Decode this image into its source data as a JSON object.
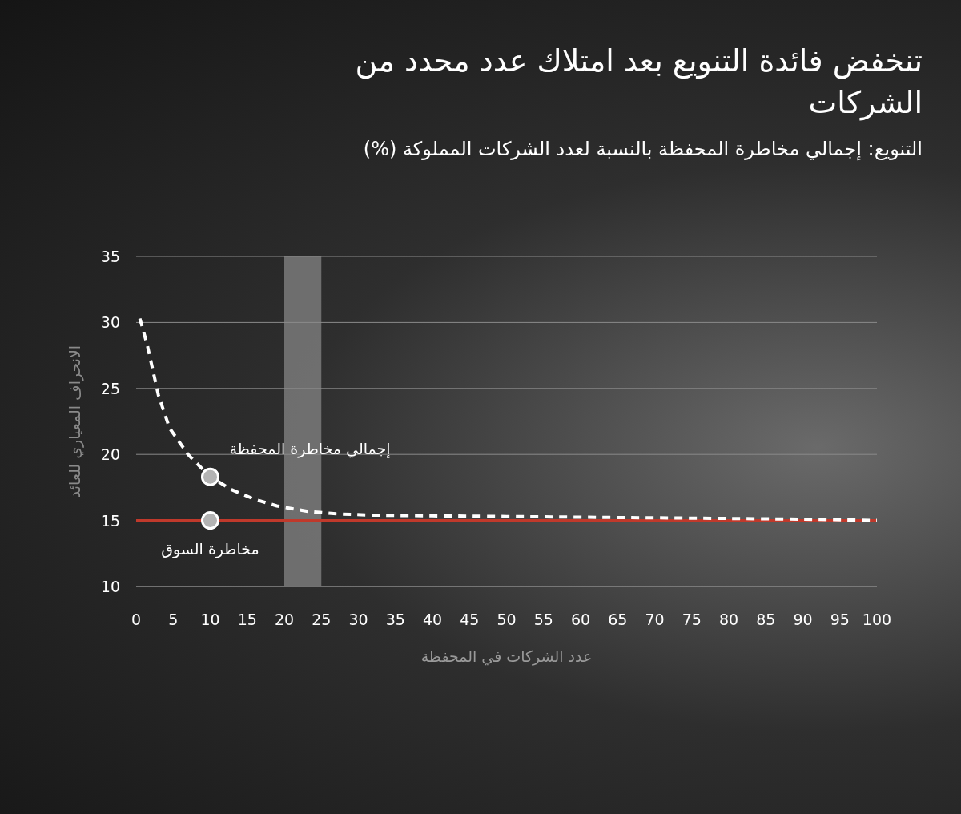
{
  "chart_data": {
    "type": "line",
    "title": "تنخفض فائدة التنويع بعد امتلاك عدد محدد من الشركات",
    "subtitle": "التنويع: إجمالي مخاطرة المحفظة بالنسبة لعدد الشركات المملوكة (%)",
    "xlabel": "عدد الشركات في المحفظة",
    "ylabel": "الانحراف المعياري للعائد",
    "xlim": [
      0,
      100
    ],
    "ylim": [
      10,
      35
    ],
    "xticks": [
      0,
      5,
      10,
      15,
      20,
      25,
      30,
      35,
      40,
      45,
      50,
      55,
      60,
      65,
      70,
      75,
      80,
      85,
      90,
      95,
      100
    ],
    "yticks": [
      10,
      15,
      20,
      25,
      30,
      35
    ],
    "grid": "y",
    "series": [
      {
        "color": "#ffffff",
        "line_style": "dashed",
        "marker": "none",
        "x": [
          0.5,
          1.5,
          3,
          4.5,
          7,
          10,
          13,
          16,
          19,
          23,
          27,
          32,
          40,
          50,
          60,
          70,
          80,
          90,
          100
        ],
        "values": [
          30.3,
          28.3,
          24.5,
          22,
          20,
          18.3,
          17.3,
          16.6,
          16.1,
          15.7,
          15.5,
          15.4,
          15.35,
          15.3,
          15.25,
          15.2,
          15.15,
          15.1,
          15.0
        ]
      },
      {
        "type": "scatter",
        "color": "#b3b3b3",
        "marker": "circle",
        "x": [
          10,
          10
        ],
        "values": [
          18.3,
          15
        ]
      }
    ],
    "ref_lines": [
      {
        "axis": "y",
        "value": 15,
        "color": "#c0392b"
      }
    ],
    "bands": [
      {
        "axis": "x",
        "from": 20,
        "to": 25,
        "color": "#7a7a7a"
      }
    ],
    "annotations": [
      {
        "text": "إجمالي مخاطرة المحفظة",
        "x": 10,
        "y": 18.3
      },
      {
        "text": "مخاطرة السوق",
        "x": 10,
        "y": 15
      }
    ]
  }
}
